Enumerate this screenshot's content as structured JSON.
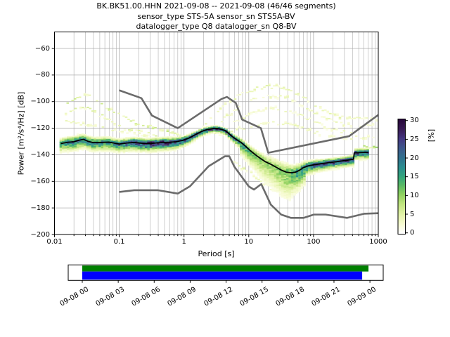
{
  "title": {
    "line1": "BK.BK51.00.HHN   2021-09-08 -- 2021-09-08  (46/46 segments)",
    "line2": "sensor_type STS-5A sensor_sn STS5A-BV",
    "line3": "datalogger_type Q8 datalogger_sn Q8-BV"
  },
  "axes": {
    "x_label": "Period [s]",
    "y_label": "Power [m²/s⁴/Hz] [dB]",
    "x_tick_values": [
      0.01,
      0.1,
      1,
      10,
      100,
      1000
    ],
    "x_tick_labels": [
      "0.01",
      "0.1",
      "1",
      "10",
      "100",
      "1000"
    ],
    "y_tick_values": [
      -60,
      -80,
      -100,
      -120,
      -140,
      -160,
      -180,
      -200
    ],
    "y_tick_labels": [
      "−60",
      "−80",
      "−100",
      "−120",
      "−140",
      "−160",
      "−180",
      "−200"
    ]
  },
  "colorbar": {
    "label": "[%]",
    "tick_values": [
      0,
      5,
      10,
      15,
      20,
      25,
      30
    ],
    "tick_labels": [
      "0",
      "5",
      "10",
      "15",
      "20",
      "25",
      "30"
    ],
    "range": [
      0,
      30
    ],
    "stops": [
      [
        0,
        "#ffffff"
      ],
      [
        0.08,
        "#f7fbd1"
      ],
      [
        0.167,
        "#e2f3a8"
      ],
      [
        0.26,
        "#bfe47e"
      ],
      [
        0.345,
        "#8ed05f"
      ],
      [
        0.43,
        "#57b866"
      ],
      [
        0.5,
        "#34a57c"
      ],
      [
        0.585,
        "#2b8d8f"
      ],
      [
        0.67,
        "#31718e"
      ],
      [
        0.75,
        "#3d5a8c"
      ],
      [
        0.835,
        "#443983"
      ],
      [
        0.92,
        "#3a1c57"
      ],
      [
        1,
        "#2a0a3e"
      ]
    ]
  },
  "timeline": {
    "tick_labels": [
      "09-08 00",
      "09-08 03",
      "09-08 06",
      "09-08 09",
      "09-08 12",
      "09-08 15",
      "09-08 18",
      "09-08 21",
      "09-09 00"
    ],
    "processed_color": "#008000",
    "data_color": "#0000ff",
    "processed_span": [
      0,
      0.995
    ],
    "data_span": [
      0,
      0.973
    ]
  },
  "chart_data": {
    "type": "heatmap",
    "title": "BK.BK51.00.HHN 2021-09-08 -- 2021-09-08 (46/46 segments)",
    "xlabel": "Period [s]",
    "ylabel": "Power [m²/s⁴/Hz] [dB]",
    "x_scale": "log",
    "xlim": [
      0.01,
      1000
    ],
    "ylim": [
      -200,
      -47
    ],
    "grid": true,
    "colorbar_label": "[%]",
    "colorbar_range": [
      0,
      30
    ],
    "series": [
      {
        "name": "noise-model-high-NHNM",
        "color": "#6b6b6b",
        "points": [
          [
            0.1,
            -91.5
          ],
          [
            0.22,
            -97.4
          ],
          [
            0.32,
            -110.5
          ],
          [
            0.8,
            -120.0
          ],
          [
            3.8,
            -98.0
          ],
          [
            4.6,
            -96.5
          ],
          [
            6.3,
            -101.0
          ],
          [
            7.9,
            -113.5
          ],
          [
            15.4,
            -120.0
          ],
          [
            20.0,
            -138.5
          ],
          [
            354.8,
            -126.0
          ],
          [
            1000,
            -110.0
          ]
        ]
      },
      {
        "name": "noise-model-low-NLNM",
        "color": "#6b6b6b",
        "points": [
          [
            0.1,
            -168.0
          ],
          [
            0.17,
            -166.7
          ],
          [
            0.4,
            -166.7
          ],
          [
            0.8,
            -169.2
          ],
          [
            1.24,
            -163.7
          ],
          [
            2.4,
            -148.6
          ],
          [
            4.3,
            -141.1
          ],
          [
            5.0,
            -141.1
          ],
          [
            6.0,
            -149.0
          ],
          [
            10.0,
            -163.8
          ],
          [
            12.0,
            -166.2
          ],
          [
            15.6,
            -162.1
          ],
          [
            21.9,
            -177.5
          ],
          [
            31.6,
            -185.0
          ],
          [
            45.0,
            -187.5
          ],
          [
            70.0,
            -187.5
          ],
          [
            101.0,
            -185.0
          ],
          [
            154.0,
            -185.0
          ],
          [
            328.0,
            -187.5
          ],
          [
            600.0,
            -184.4
          ],
          [
            1000,
            -184.0
          ]
        ]
      },
      {
        "name": "psd-mode",
        "color": "#000000",
        "points": [
          [
            0.0125,
            -131.6
          ],
          [
            0.016,
            -130.6
          ],
          [
            0.02,
            -130.2
          ],
          [
            0.024,
            -129.0
          ],
          [
            0.028,
            -128.4
          ],
          [
            0.033,
            -129.9
          ],
          [
            0.04,
            -130.9
          ],
          [
            0.055,
            -130.7
          ],
          [
            0.07,
            -130.5
          ],
          [
            0.085,
            -131.3
          ],
          [
            0.1,
            -131.9
          ],
          [
            0.13,
            -131.2
          ],
          [
            0.17,
            -130.7
          ],
          [
            0.22,
            -131.3
          ],
          [
            0.28,
            -131.6
          ],
          [
            0.36,
            -131.2
          ],
          [
            0.45,
            -130.8
          ],
          [
            0.6,
            -130.6
          ],
          [
            0.75,
            -130.2
          ],
          [
            0.95,
            -129.2
          ],
          [
            1.2,
            -127.4
          ],
          [
            1.5,
            -124.8
          ],
          [
            1.9,
            -122.3
          ],
          [
            2.3,
            -121.0
          ],
          [
            2.8,
            -120.3
          ],
          [
            3.3,
            -120.2
          ],
          [
            3.8,
            -120.9
          ],
          [
            4.4,
            -122.0
          ],
          [
            5.0,
            -124.3
          ],
          [
            5.6,
            -126.4
          ],
          [
            6.5,
            -128.6
          ],
          [
            7.6,
            -130.7
          ],
          [
            9.0,
            -133.8
          ],
          [
            10.5,
            -136.8
          ],
          [
            12.5,
            -139.8
          ],
          [
            15.0,
            -142.6
          ],
          [
            18.0,
            -145.2
          ],
          [
            22.0,
            -147.2
          ],
          [
            27.0,
            -149.6
          ],
          [
            32.0,
            -151.6
          ],
          [
            38.0,
            -153.1
          ],
          [
            45.0,
            -153.5
          ],
          [
            52.0,
            -153.2
          ],
          [
            60.0,
            -151.8
          ],
          [
            70.0,
            -149.6
          ],
          [
            85.0,
            -148.2
          ],
          [
            100.0,
            -147.6
          ],
          [
            130.0,
            -146.7
          ],
          [
            170.0,
            -146.0
          ],
          [
            220.0,
            -145.3
          ],
          [
            280.0,
            -144.6
          ],
          [
            350.0,
            -143.9
          ],
          [
            415.0,
            -143.3
          ],
          [
            425.0,
            -138.6
          ],
          [
            550.0,
            -138.3
          ],
          [
            700.0,
            -138.2
          ]
        ]
      }
    ],
    "histogram": {
      "period_range": [
        0.0125,
        720
      ],
      "octave_step": 0.125,
      "db_bin_width": 1,
      "sigma_db": [
        [
          0.012,
          2.6
        ],
        [
          0.03,
          2.6
        ],
        [
          0.1,
          2.4
        ],
        [
          0.3,
          2.3
        ],
        [
          0.7,
          2.2
        ],
        [
          1.5,
          1.6
        ],
        [
          3,
          1.1
        ],
        [
          4,
          1.2
        ],
        [
          6,
          1.6
        ],
        [
          9,
          2.2
        ],
        [
          15,
          3.2
        ],
        [
          25,
          4.2
        ],
        [
          40,
          4.5
        ],
        [
          60,
          3.2
        ],
        [
          90,
          2.4
        ],
        [
          150,
          2.0
        ],
        [
          300,
          1.8
        ],
        [
          500,
          2.0
        ],
        [
          700,
          2.0
        ]
      ],
      "peak_fraction": [
        [
          0.012,
          0.14
        ],
        [
          0.02,
          0.2
        ],
        [
          0.04,
          0.18
        ],
        [
          0.08,
          0.18
        ],
        [
          0.15,
          0.22
        ],
        [
          0.3,
          0.27
        ],
        [
          0.5,
          0.28
        ],
        [
          0.8,
          0.24
        ],
        [
          1.5,
          0.22
        ],
        [
          2.5,
          0.27
        ],
        [
          3.2,
          0.3
        ],
        [
          4.5,
          0.26
        ],
        [
          6,
          0.22
        ],
        [
          8,
          0.17
        ],
        [
          12,
          0.11
        ],
        [
          20,
          0.09
        ],
        [
          30,
          0.1
        ],
        [
          45,
          0.12
        ],
        [
          60,
          0.16
        ],
        [
          90,
          0.2
        ],
        [
          150,
          0.23
        ],
        [
          250,
          0.25
        ],
        [
          400,
          0.26
        ],
        [
          500,
          0.23
        ],
        [
          700,
          0.22
        ]
      ]
    },
    "outlier_traces": [
      {
        "name": "hf-outlier-1",
        "density": 0.05,
        "points": [
          [
            0.016,
            -101
          ],
          [
            0.022,
            -96.5
          ],
          [
            0.03,
            -93.8
          ],
          [
            0.05,
            -101
          ],
          [
            0.072,
            -106.5
          ],
          [
            0.15,
            -114.4
          ],
          [
            0.29,
            -118.6
          ],
          [
            0.55,
            -122.5
          ],
          [
            0.9,
            -124.8
          ]
        ]
      },
      {
        "name": "hf-outlier-2",
        "density": 0.04,
        "points": [
          [
            0.015,
            -108
          ],
          [
            0.03,
            -104
          ],
          [
            0.06,
            -112
          ],
          [
            0.105,
            -118.6
          ],
          [
            0.21,
            -122.3
          ],
          [
            0.4,
            -125.5
          ]
        ]
      },
      {
        "name": "hf-outlier-3",
        "density": 0.03,
        "points": [
          [
            0.014,
            -115
          ],
          [
            0.05,
            -119.5
          ],
          [
            0.15,
            -123.5
          ],
          [
            0.3,
            -126.0
          ]
        ]
      },
      {
        "name": "eq-hump-1",
        "density": 0.035,
        "points": [
          [
            2,
            -118
          ],
          [
            4,
            -103
          ],
          [
            8,
            -93.5
          ],
          [
            15,
            -89.5
          ],
          [
            25,
            -88.8
          ],
          [
            40,
            -90.5
          ],
          [
            70,
            -96
          ],
          [
            120,
            -104
          ],
          [
            250,
            -112
          ],
          [
            450,
            -113
          ],
          [
            700,
            -111
          ],
          [
            1000,
            -113
          ]
        ]
      },
      {
        "name": "eq-hump-2",
        "density": 0.03,
        "points": [
          [
            2.5,
            -121
          ],
          [
            5,
            -110
          ],
          [
            10,
            -100
          ],
          [
            20,
            -95.5
          ],
          [
            40,
            -97.5
          ],
          [
            80,
            -105
          ],
          [
            150,
            -112
          ],
          [
            300,
            -117.5
          ],
          [
            600,
            -118
          ],
          [
            900,
            -117
          ]
        ]
      },
      {
        "name": "eq-hump-3",
        "density": 0.028,
        "points": [
          [
            3,
            -124
          ],
          [
            6,
            -116
          ],
          [
            12,
            -108
          ],
          [
            25,
            -104.5
          ],
          [
            50,
            -108
          ],
          [
            100,
            -115
          ],
          [
            200,
            -121
          ],
          [
            400,
            -124.5
          ]
        ]
      },
      {
        "name": "eq-hump-4",
        "density": 0.03,
        "points": [
          [
            3,
            -126
          ],
          [
            8,
            -120
          ],
          [
            20,
            -115.5
          ],
          [
            50,
            -118
          ],
          [
            120,
            -124
          ],
          [
            250,
            -127.5
          ],
          [
            500,
            -127
          ],
          [
            900,
            -127
          ]
        ]
      },
      {
        "name": "low-tail-1",
        "density": 0.035,
        "points": [
          [
            6,
            -146
          ],
          [
            10,
            -153
          ],
          [
            18,
            -162
          ],
          [
            30,
            -170
          ],
          [
            42,
            -172
          ],
          [
            55,
            -167
          ],
          [
            70,
            -161
          ]
        ]
      },
      {
        "name": "low-tail-2",
        "density": 0.03,
        "points": [
          [
            8,
            -143
          ],
          [
            14,
            -150
          ],
          [
            25,
            -158
          ],
          [
            40,
            -162
          ],
          [
            55,
            -158
          ]
        ]
      },
      {
        "name": "long-period-light",
        "density": 0.07,
        "points": [
          [
            430,
            -136
          ],
          [
            600,
            -134.5
          ],
          [
            950,
            -133.5
          ]
        ]
      }
    ]
  }
}
